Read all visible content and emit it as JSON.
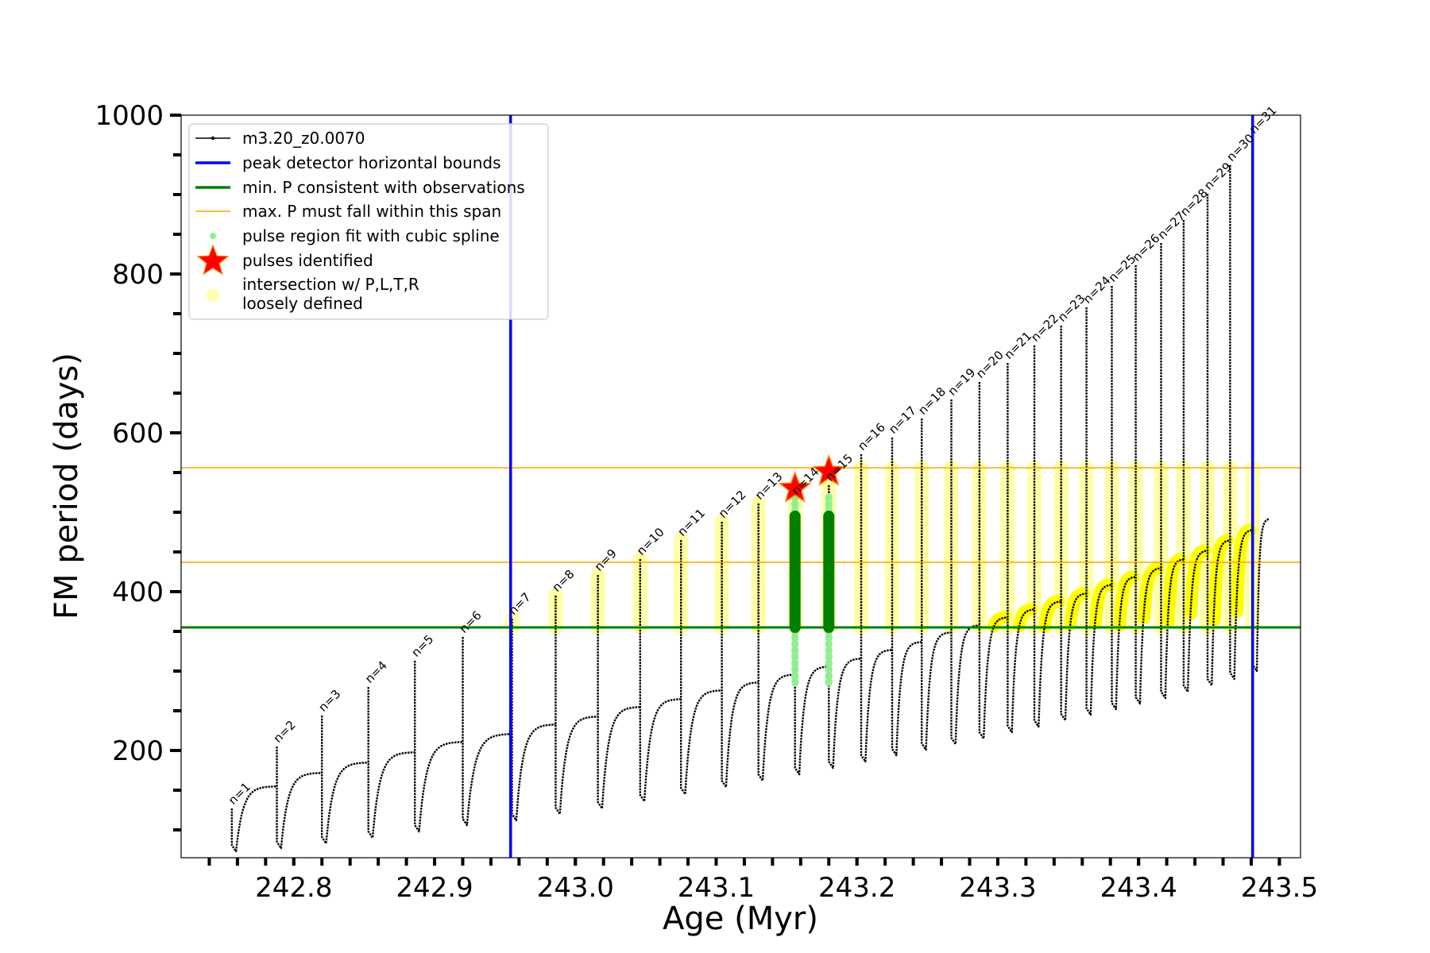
{
  "chart_data": {
    "type": "line",
    "xlabel": "Age (Myr)",
    "ylabel": "FM period (days)",
    "xlim": [
      242.72,
      243.515
    ],
    "ylim": [
      65,
      1000
    ],
    "x_ticks": [
      "242.8",
      "242.9",
      "243.0",
      "243.1",
      "243.2",
      "243.3",
      "243.4",
      "243.5"
    ],
    "x_tick_values": [
      242.8,
      242.9,
      243.0,
      243.1,
      243.2,
      243.3,
      243.4,
      243.5
    ],
    "y_ticks": [
      "200",
      "400",
      "600",
      "800",
      "1000"
    ],
    "y_tick_values": [
      200,
      400,
      600,
      800,
      1000
    ],
    "minor_x_step": 0.02,
    "minor_y_step": 50,
    "legend_position": "top-left",
    "legend": [
      {
        "label": "m3.20_z0.0070",
        "kind": "line-marker",
        "color": "#000000"
      },
      {
        "label": "peak detector horizontal bounds",
        "kind": "line",
        "color": "#0000ff"
      },
      {
        "label": "min. P consistent with observations",
        "kind": "line",
        "color": "#008000"
      },
      {
        "label": "max. P must fall within this span",
        "kind": "thin-line",
        "color": "#ffa500"
      },
      {
        "label": "pulse region fit with cubic spline",
        "kind": "dot",
        "color": "#90ee90"
      },
      {
        "label": "pulses identified",
        "kind": "star",
        "color": "#ff0000"
      },
      {
        "label": "intersection w/ P,L,T,R\nloosely defined",
        "kind": "big-dot",
        "color": "#ffff99"
      }
    ],
    "vertical_lines": [
      242.954,
      243.481
    ],
    "min_period_line": 355,
    "max_period_span": [
      437,
      556
    ],
    "series": [
      {
        "name": "m3.20_z0.0070",
        "color": "#000000",
        "pulses": [
          {
            "n": 1,
            "age": 242.756,
            "spike": 127,
            "dip": 73,
            "plateau": 155
          },
          {
            "n": 2,
            "age": 242.788,
            "spike": 205,
            "dip": 77,
            "plateau": 172
          },
          {
            "n": 3,
            "age": 242.82,
            "spike": 244,
            "dip": 83,
            "plateau": 185
          },
          {
            "n": 4,
            "age": 242.853,
            "spike": 280,
            "dip": 90,
            "plateau": 198
          },
          {
            "n": 5,
            "age": 242.886,
            "spike": 313,
            "dip": 98,
            "plateau": 211
          },
          {
            "n": 6,
            "age": 242.92,
            "spike": 343,
            "dip": 106,
            "plateau": 221
          },
          {
            "n": 7,
            "age": 242.955,
            "spike": 366,
            "dip": 112,
            "plateau": 233
          },
          {
            "n": 8,
            "age": 242.986,
            "spike": 395,
            "dip": 120,
            "plateau": 243
          },
          {
            "n": 9,
            "age": 243.016,
            "spike": 421,
            "dip": 127,
            "plateau": 255
          },
          {
            "n": 10,
            "age": 243.046,
            "spike": 441,
            "dip": 136,
            "plateau": 265
          },
          {
            "n": 11,
            "age": 243.075,
            "spike": 465,
            "dip": 145,
            "plateau": 276
          },
          {
            "n": 12,
            "age": 243.104,
            "spike": 488,
            "dip": 154,
            "plateau": 286
          },
          {
            "n": 13,
            "age": 243.13,
            "spike": 511,
            "dip": 162,
            "plateau": 296
          },
          {
            "n": 14,
            "age": 243.156,
            "spike": 517,
            "dip": 170,
            "plateau": 306
          },
          {
            "n": 15,
            "age": 243.18,
            "spike": 534,
            "dip": 178,
            "plateau": 316
          },
          {
            "n": 16,
            "age": 243.203,
            "spike": 573,
            "dip": 186,
            "plateau": 327
          },
          {
            "n": 17,
            "age": 243.225,
            "spike": 594,
            "dip": 194,
            "plateau": 337
          },
          {
            "n": 18,
            "age": 243.246,
            "spike": 618,
            "dip": 201,
            "plateau": 349
          },
          {
            "n": 19,
            "age": 243.267,
            "spike": 642,
            "dip": 208,
            "plateau": 358
          },
          {
            "n": 20,
            "age": 243.287,
            "spike": 664,
            "dip": 215,
            "plateau": 368
          },
          {
            "n": 21,
            "age": 243.307,
            "spike": 688,
            "dip": 223,
            "plateau": 378
          },
          {
            "n": 22,
            "age": 243.326,
            "spike": 710,
            "dip": 230,
            "plateau": 388
          },
          {
            "n": 23,
            "age": 243.345,
            "spike": 735,
            "dip": 238,
            "plateau": 398
          },
          {
            "n": 24,
            "age": 243.363,
            "spike": 758,
            "dip": 245,
            "plateau": 409
          },
          {
            "n": 25,
            "age": 243.381,
            "spike": 785,
            "dip": 252,
            "plateau": 419
          },
          {
            "n": 26,
            "age": 243.398,
            "spike": 811,
            "dip": 259,
            "plateau": 430
          },
          {
            "n": 27,
            "age": 243.416,
            "spike": 839,
            "dip": 266,
            "plateau": 441
          },
          {
            "n": 28,
            "age": 243.432,
            "spike": 868,
            "dip": 274,
            "plateau": 452
          },
          {
            "n": 29,
            "age": 243.449,
            "spike": 901,
            "dip": 282,
            "plateau": 465
          },
          {
            "n": 30,
            "age": 243.465,
            "spike": 937,
            "dip": 290,
            "plateau": 478
          },
          {
            "n": 31,
            "age": 243.481,
            "spike": 972,
            "dip": 300,
            "plateau": 492
          }
        ]
      }
    ],
    "pulse_labels": [
      "n=1",
      "n=2",
      "n=3",
      "n=4",
      "n=5",
      "n=6",
      "n=7",
      "n=8",
      "n=9",
      "n=10",
      "n=11",
      "n=12",
      "n=13",
      "n=14",
      "n=15",
      "n=16",
      "n=17",
      "n=18",
      "n=19",
      "n=20",
      "n=21",
      "n=22",
      "n=23",
      "n=24",
      "n=25",
      "n=26",
      "n=27",
      "n=28",
      "n=29",
      "n=30",
      "n=31"
    ],
    "pulses_identified": [
      {
        "n": 14,
        "age": 243.156,
        "period": 530
      },
      {
        "n": 15,
        "age": 243.18,
        "period": 551
      }
    ],
    "spline_fit_pulses": [
      14,
      15
    ]
  }
}
